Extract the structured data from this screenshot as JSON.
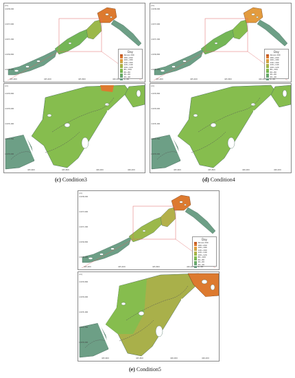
{
  "captions": [
    {
      "letter": "(c)",
      "text": "Condition3"
    },
    {
      "letter": "(d)",
      "text": "Condition4"
    },
    {
      "letter": "(e)",
      "text": "Condition5"
    }
  ],
  "unit_label": "(m)",
  "y_ticks": [
    "4,938,000",
    "4,937,800",
    "4,937,600",
    "4,937,400",
    "4,937,200",
    "4,937,000",
    "4,936,800",
    "4,936,600",
    "4,936,400"
  ],
  "x_ticks": [
    "425,000",
    "425,200",
    "425,400",
    "425,600",
    "425,800",
    "426,000",
    "426,200",
    "426,400"
  ],
  "zoom_y_ticks": [
    "4,935,800",
    "4,935,600",
    "4,935,400",
    "4,935,200",
    "4,935,000",
    "4,934,800"
  ],
  "zoom_x_ticks": [
    "425,600",
    "425,800",
    "426,000",
    "426,200"
  ],
  "legend": {
    "title": "Day",
    "items": [
      {
        "label": "Above 200",
        "color": "#c65d28"
      },
      {
        "label": "180~200",
        "color": "#dd7a2f"
      },
      {
        "label": "160~180",
        "color": "#e39b3e"
      },
      {
        "label": "140~160",
        "color": "#c9a94a"
      },
      {
        "label": "120~140",
        "color": "#b3b04a"
      },
      {
        "label": "100~120",
        "color": "#9bb84a"
      },
      {
        "label": "80~100",
        "color": "#86bd4e"
      },
      {
        "label": "60~80",
        "color": "#74b656"
      },
      {
        "label": "40~60",
        "color": "#6aad64"
      },
      {
        "label": "20~40",
        "color": "#6ba578"
      },
      {
        "label": "0~20",
        "color": "#6d9f86"
      }
    ]
  },
  "colors": {
    "frame": "#888888",
    "callout": "#e06666",
    "contour": "#555555"
  }
}
